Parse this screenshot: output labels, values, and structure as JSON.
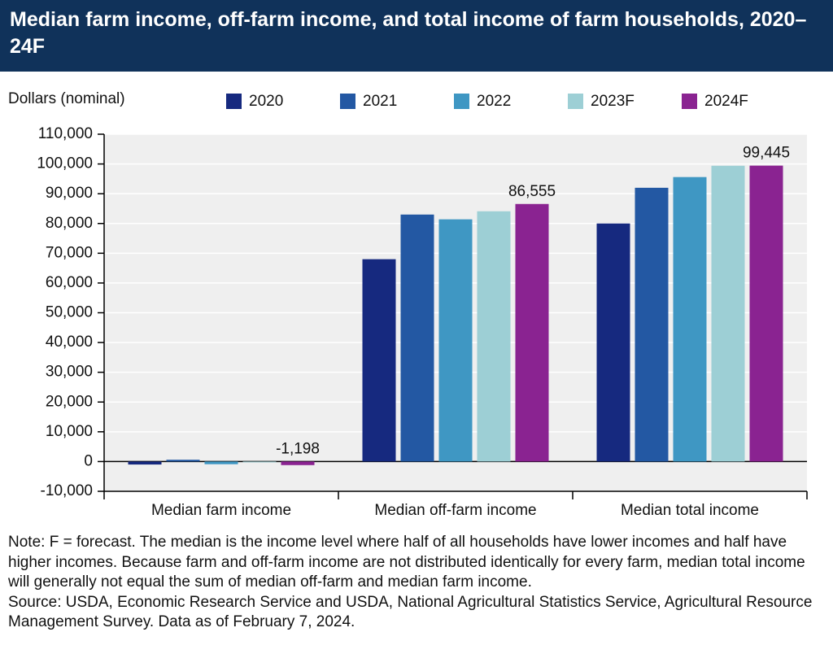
{
  "chart_data": {
    "type": "bar",
    "title": "Median farm income, off-farm income, and total income of farm households, 2020–24F",
    "y_label": "Dollars (nominal)",
    "categories": [
      "Median farm income",
      "Median off-farm income",
      "Median total income"
    ],
    "series": [
      {
        "name": "2020",
        "color": "#16297f",
        "values": [
          -1000,
          68000,
          80000
        ]
      },
      {
        "name": "2021",
        "color": "#2358a3",
        "values": [
          600,
          83000,
          92000
        ]
      },
      {
        "name": "2022",
        "color": "#3f97c3",
        "values": [
          -900,
          81400,
          95600
        ]
      },
      {
        "name": "2023F",
        "color": "#9dcfd5",
        "values": [
          -200,
          84100,
          99400
        ]
      },
      {
        "name": "2024F",
        "color": "#8a2391",
        "values": [
          -1198,
          86555,
          99445
        ],
        "value_labels": [
          "-1,198",
          "86,555",
          "99,445"
        ]
      }
    ],
    "ylim": [
      -10000,
      110000
    ],
    "yticks": [
      {
        "value": -10000,
        "label": "-10,000"
      },
      0,
      {
        "value": 10000,
        "label": "10,000"
      },
      {
        "value": 20000,
        "label": "20,000"
      },
      {
        "value": 30000,
        "label": "30,000"
      },
      {
        "value": 40000,
        "label": "40,000"
      },
      {
        "value": 50000,
        "label": "50,000"
      },
      {
        "value": 60000,
        "label": "60,000"
      },
      {
        "value": 70000,
        "label": "70,000"
      },
      {
        "value": 80000,
        "label": "80,000"
      },
      {
        "value": 90000,
        "label": "90,000"
      },
      {
        "value": 100000,
        "label": "100,000"
      },
      {
        "value": 110000,
        "label": "110,000"
      }
    ],
    "grid": true,
    "note": "Note: F = forecast. The median is the income level where half of all households have lower incomes and half have higher incomes. Because farm and off-farm income are not distributed identically for every farm, median total income will generally not equal the sum of median off-farm and median farm income.",
    "source": "Source: USDA, Economic Research Service and USDA, National Agricultural Statistics Service, Agricultural Resource Management Survey. Data as of February 7, 2024."
  }
}
